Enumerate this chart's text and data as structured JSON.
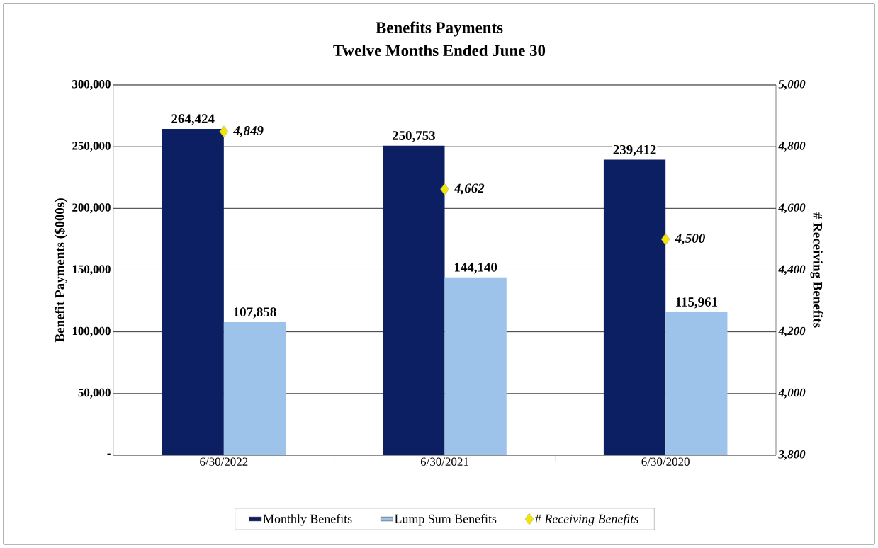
{
  "chart_data": {
    "type": "bar",
    "title": "Benefits Payments",
    "subtitle": "Twelve Months Ended June 30",
    "categories": [
      "6/30/2022",
      "6/30/2021",
      "6/30/2020"
    ],
    "ylabel": "Benefit Payments ($000s)",
    "y2label": "# Receiving Benefits",
    "ylim": [
      0,
      300000
    ],
    "yticks": [
      {
        "value": 0,
        "label": "-"
      },
      {
        "value": 50000,
        "label": "50,000"
      },
      {
        "value": 100000,
        "label": "100,000"
      },
      {
        "value": 150000,
        "label": "150,000"
      },
      {
        "value": 200000,
        "label": "200,000"
      },
      {
        "value": 250000,
        "label": "250,000"
      },
      {
        "value": 300000,
        "label": "300,000"
      }
    ],
    "y2lim": [
      3800,
      5000
    ],
    "y2ticks": [
      {
        "value": 3800,
        "label": "3,800"
      },
      {
        "value": 4000,
        "label": "4,000"
      },
      {
        "value": 4200,
        "label": "4,200"
      },
      {
        "value": 4400,
        "label": "4,400"
      },
      {
        "value": 4600,
        "label": "4,600"
      },
      {
        "value": 4800,
        "label": "4,800"
      },
      {
        "value": 5000,
        "label": "5,000"
      }
    ],
    "grid": "y",
    "legend": "bottom",
    "series": [
      {
        "name": "Monthly Benefits",
        "color": "#0d1f63",
        "values": [
          264424,
          250753,
          239412
        ],
        "value_labels": [
          "264,424",
          "250,753",
          "239,412"
        ]
      },
      {
        "name": "Lump Sum Benefits",
        "color": "#9dc3ea",
        "values": [
          107858,
          144140,
          115961
        ],
        "value_labels": [
          "107,858",
          "144,140",
          "115,961"
        ]
      },
      {
        "name": "# *Receiving Benefits*",
        "type": "scatter",
        "axis": "y2",
        "marker": "diamond",
        "color": "#f2e600",
        "values": [
          4849,
          4662,
          4500
        ],
        "value_labels": [
          "4,849",
          "4,662",
          "4,500"
        ]
      }
    ]
  }
}
